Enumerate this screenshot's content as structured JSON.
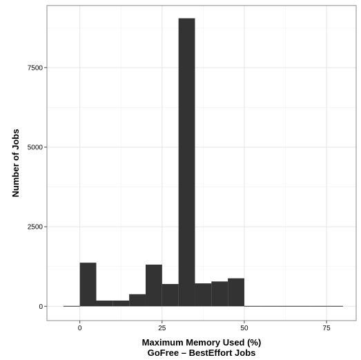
{
  "chart_data": {
    "type": "bar",
    "title": "",
    "xlabel": "Maximum Memory Used (%)",
    "xlabel_line2": "GoFree – BestEffort Jobs",
    "ylabel": "Number of Jobs",
    "xlim": [
      -10,
      84
    ],
    "ylim": [
      -450,
      9450
    ],
    "x_ticks": [
      0,
      25,
      50,
      75
    ],
    "y_ticks": [
      0,
      2500,
      5000,
      7500
    ],
    "x_tick_labels": [
      "0",
      "25",
      "50",
      "75"
    ],
    "y_tick_labels": [
      "0",
      "2500",
      "5000",
      "7500"
    ],
    "grid": true,
    "bar_color": "#333333",
    "bins": [
      {
        "x0": -5,
        "x1": 0,
        "value": 0
      },
      {
        "x0": 0,
        "x1": 5,
        "value": 1370
      },
      {
        "x0": 5,
        "x1": 10,
        "value": 180
      },
      {
        "x0": 10,
        "x1": 15,
        "value": 180
      },
      {
        "x0": 15,
        "x1": 20,
        "value": 380
      },
      {
        "x0": 20,
        "x1": 25,
        "value": 1310
      },
      {
        "x0": 25,
        "x1": 30,
        "value": 700
      },
      {
        "x0": 30,
        "x1": 35,
        "value": 9050
      },
      {
        "x0": 35,
        "x1": 40,
        "value": 720
      },
      {
        "x0": 40,
        "x1": 45,
        "value": 780
      },
      {
        "x0": 45,
        "x1": 50,
        "value": 880
      },
      {
        "x0": 50,
        "x1": 55,
        "value": 0
      },
      {
        "x0": 55,
        "x1": 60,
        "value": 0
      },
      {
        "x0": 60,
        "x1": 65,
        "value": 0
      },
      {
        "x0": 65,
        "x1": 70,
        "value": 0
      },
      {
        "x0": 70,
        "x1": 75,
        "value": 0
      },
      {
        "x0": 75,
        "x1": 80,
        "value": 0
      }
    ]
  }
}
